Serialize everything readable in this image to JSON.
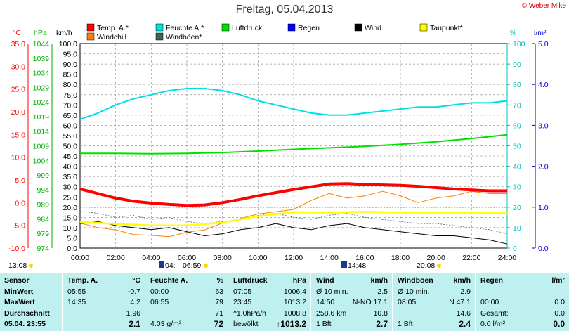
{
  "title": "Freitag, 05.04.2013",
  "copyright": "© Weber Mike",
  "legend": [
    {
      "name": "Temp. A.*",
      "color": "#ff0000"
    },
    {
      "name": "Feuchte A.*",
      "color": "#00e0e0"
    },
    {
      "name": "Luftdruck",
      "color": "#00e000"
    },
    {
      "name": "Regen",
      "color": "#0000ff"
    },
    {
      "name": "Wind",
      "color": "#000000"
    },
    {
      "name": "Taupunkt*",
      "color": "#ffff00"
    },
    {
      "name": "Windchill",
      "color": "#ff8000"
    },
    {
      "name": "Windböen*",
      "color": "#336666"
    }
  ],
  "axes": {
    "temp": {
      "unit": "°C",
      "ticks": [
        "35.0",
        "30.0",
        "25.0",
        "20.0",
        "15.0",
        "10.0",
        "5.0",
        "0.0",
        "-5.0",
        "-10.0"
      ],
      "color": "#ff0000"
    },
    "press": {
      "unit": "hPa",
      "ticks": [
        "1044",
        "1039",
        "1034",
        "1029",
        "1024",
        "1019",
        "1014",
        "1009",
        "1004",
        "999",
        "994",
        "989",
        "984",
        "979",
        "974"
      ],
      "color": "#00b000"
    },
    "wind": {
      "unit": "km/h",
      "ticks": [
        "100.0",
        "95.0",
        "90.0",
        "85.0",
        "80.0",
        "75.0",
        "70.0",
        "65.0",
        "60.0",
        "55.0",
        "50.0",
        "45.0",
        "40.0",
        "35.0",
        "30.0",
        "25.0",
        "20.0",
        "15.0",
        "10.0",
        "5.0",
        "0.0"
      ],
      "color": "#000000"
    },
    "hum": {
      "unit": "%",
      "ticks": [
        "100",
        "90",
        "80",
        "70",
        "60",
        "50",
        "40",
        "30",
        "20",
        "10",
        "0"
      ],
      "color": "#00c0c0"
    },
    "rain": {
      "unit": "l/m²",
      "ticks": [
        "5.0",
        "4.0",
        "3.0",
        "2.0",
        "1.0",
        "0.0"
      ],
      "color": "#0000cc"
    },
    "x": {
      "ticks": [
        "00:00",
        "02:00",
        "04:00",
        "06:00",
        "08:00",
        "10:00",
        "12:00",
        "14:00",
        "16:00",
        "18:00",
        "20:00",
        "22:00",
        "24:00"
      ]
    }
  },
  "markers": {
    "left": "13:08",
    "a": "04:",
    "b": "06:59",
    "c": "14:48",
    "d": "20:08"
  },
  "chart_data": {
    "type": "line",
    "x_label": "",
    "x_range": [
      0,
      24
    ],
    "series": [
      {
        "name": "Temp. A.*",
        "axis": "temp",
        "x": [
          0,
          1,
          2,
          3,
          4,
          5,
          6,
          7,
          8,
          9,
          10,
          11,
          12,
          13,
          14,
          15,
          16,
          17,
          18,
          19,
          20,
          21,
          22,
          23,
          24
        ],
        "values": [
          3.0,
          2.0,
          1.0,
          0.3,
          -0.1,
          -0.4,
          -0.6,
          -0.5,
          0.0,
          0.7,
          1.5,
          2.2,
          2.9,
          3.5,
          4.1,
          4.2,
          4.0,
          3.9,
          3.8,
          3.6,
          3.3,
          3.0,
          2.8,
          2.6,
          2.6
        ]
      },
      {
        "name": "Feuchte A.*",
        "axis": "hum",
        "x": [
          0,
          1,
          2,
          3,
          4,
          5,
          6,
          7,
          8,
          9,
          10,
          11,
          12,
          13,
          14,
          15,
          16,
          17,
          18,
          19,
          20,
          21,
          22,
          23,
          24
        ],
        "values": [
          63,
          66,
          70,
          73,
          75,
          77,
          78,
          78,
          77,
          75,
          72,
          70,
          68,
          66,
          65,
          65,
          66,
          67,
          68,
          69,
          69,
          70,
          71,
          71,
          72
        ]
      },
      {
        "name": "Luftdruck",
        "axis": "press",
        "x": [
          0,
          2,
          4,
          6,
          8,
          10,
          12,
          14,
          16,
          18,
          20,
          22,
          24
        ],
        "values": [
          1006.4,
          1006.4,
          1006.3,
          1006.4,
          1006.7,
          1007.2,
          1007.8,
          1008.3,
          1008.8,
          1009.5,
          1010.4,
          1011.5,
          1012.8
        ]
      },
      {
        "name": "Taupunkt*",
        "axis": "temp",
        "x": [
          0,
          2,
          4,
          6,
          8,
          10,
          12,
          14,
          16,
          18,
          20,
          22,
          24
        ],
        "values": [
          -4.2,
          -4.7,
          -5.0,
          -5.0,
          -4.4,
          -3.0,
          -2.1,
          -2.2,
          -2.0,
          -2.2,
          -2.2,
          -2.2,
          -2.3
        ]
      },
      {
        "name": "Windchill",
        "axis": "temp",
        "x": [
          0,
          1,
          2,
          3,
          4,
          5,
          6,
          7,
          8,
          9,
          10,
          11,
          12,
          13,
          14,
          15,
          16,
          17,
          18,
          19,
          20,
          21,
          22,
          23,
          24
        ],
        "values": [
          -4.5,
          -5.5,
          -6.0,
          -7.0,
          -7.2,
          -7.5,
          -6.5,
          -6.0,
          -4.5,
          -3.5,
          -2.5,
          -2.0,
          -1.5,
          0.5,
          2.0,
          1.0,
          1.5,
          2.5,
          1.5,
          0.0,
          1.0,
          1.5,
          2.5,
          2.0,
          2.0
        ]
      },
      {
        "name": "Wind",
        "axis": "wind",
        "x": [
          0,
          1,
          2,
          3,
          4,
          5,
          6,
          7,
          8,
          9,
          10,
          11,
          12,
          13,
          14,
          15,
          16,
          17,
          18,
          19,
          20,
          21,
          22,
          23,
          24
        ],
        "values": [
          12,
          13,
          11,
          10,
          9,
          10,
          8,
          6,
          7,
          9,
          10,
          12,
          10,
          9,
          11,
          12,
          10,
          9,
          8,
          7,
          6,
          6,
          5,
          4,
          2
        ]
      },
      {
        "name": "Windböen*",
        "axis": "wind",
        "x": [
          0,
          1,
          2,
          3,
          4,
          5,
          6,
          7,
          8,
          9,
          10,
          11,
          12,
          13,
          14,
          15,
          16,
          17,
          18,
          19,
          20,
          21,
          22,
          23,
          24
        ],
        "values": [
          18,
          17,
          15,
          16,
          14,
          15,
          13,
          12,
          13,
          14,
          16,
          17,
          15,
          14,
          16,
          17,
          15,
          14,
          13,
          12,
          12,
          11,
          10,
          9,
          7
        ]
      }
    ]
  },
  "table": {
    "cols": [
      {
        "header": [
          "Sensor",
          ""
        ],
        "rows": [
          [
            "MinWert",
            ""
          ],
          [
            "MaxWert",
            ""
          ],
          [
            "Durchschnitt",
            ""
          ],
          [
            "05.04. 23:55",
            ""
          ]
        ]
      },
      {
        "header": [
          "Temp. A.",
          "°C"
        ],
        "rows": [
          [
            "05:55",
            "-0.7"
          ],
          [
            "14:35",
            "4.2"
          ],
          [
            "",
            "1.96"
          ],
          [
            "",
            "2.1"
          ]
        ]
      },
      {
        "header": [
          "Feuchte A.",
          "%"
        ],
        "rows": [
          [
            "00:00",
            "63"
          ],
          [
            "06:55",
            "79"
          ],
          [
            "",
            "71"
          ],
          [
            "4.03 g/m³",
            "72"
          ]
        ]
      },
      {
        "header": [
          "Luftdruck",
          "hPa"
        ],
        "rows": [
          [
            "07:05",
            "1006.4"
          ],
          [
            "23:45",
            "1013.2"
          ],
          [
            "^1.0hPa/h",
            "1008.8"
          ],
          [
            "bewölkt",
            "↑1013.2"
          ]
        ]
      },
      {
        "header": [
          "Wind",
          "km/h"
        ],
        "rows": [
          [
            "Ø 10 min.",
            "2.5"
          ],
          [
            "14:50",
            "N-NO 17.1"
          ],
          [
            "258.6 km",
            "10.8"
          ],
          [
            "1 Bft",
            "2.7"
          ]
        ]
      },
      {
        "header": [
          "Windböen",
          "km/h"
        ],
        "rows": [
          [
            "Ø 10 min.",
            "2.9"
          ],
          [
            "08:05",
            "N 47.1"
          ],
          [
            "",
            "14.6"
          ],
          [
            "1 Bft",
            "2.4"
          ]
        ]
      },
      {
        "header": [
          "Regen",
          "l/m²"
        ],
        "rows": [
          [
            "",
            ""
          ],
          [
            "00:00",
            "0.0"
          ],
          [
            "Gesamt:",
            "0.0"
          ],
          [
            "0.0 l/m²",
            "0.0"
          ]
        ]
      }
    ]
  }
}
